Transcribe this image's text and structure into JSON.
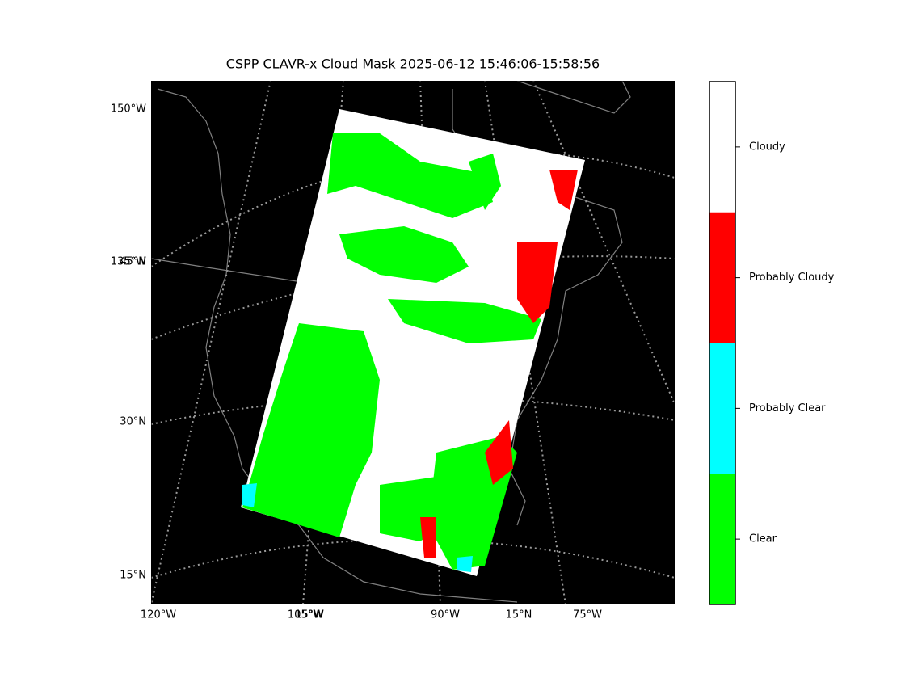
{
  "title": "CSPP CLAVR-x Cloud Mask 2025-06-12 15:46:06-15:58:56",
  "map": {
    "left_labels": [
      "150°W",
      "135°W",
      "45°N",
      "30°N",
      "15°N"
    ],
    "bottom_labels": [
      "120°W",
      "105°W",
      "15°W",
      "90°W",
      "15°N",
      "75°W"
    ]
  },
  "colorbar": {
    "categories": [
      {
        "label": "Cloudy",
        "color": "#ffffff"
      },
      {
        "label": "Probably Cloudy",
        "color": "#ff0000"
      },
      {
        "label": "Probably Clear",
        "color": "#00ffff"
      },
      {
        "label": "Clear",
        "color": "#00ff00"
      }
    ]
  }
}
